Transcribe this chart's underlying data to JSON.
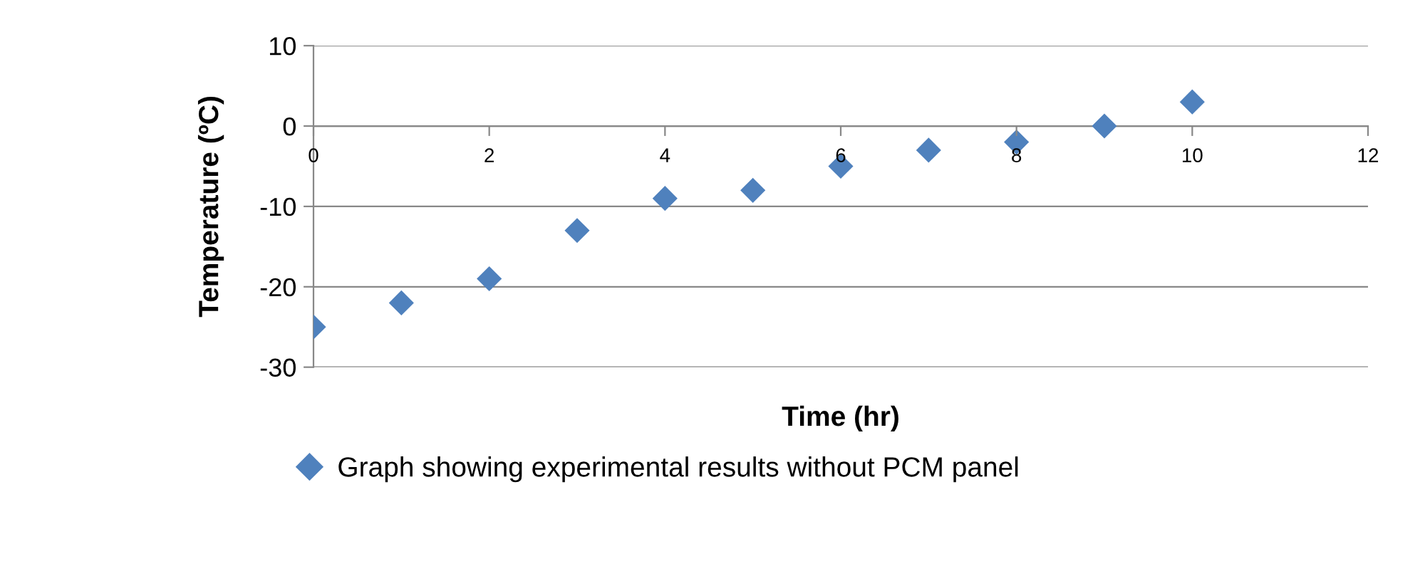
{
  "chart_data": {
    "type": "scatter",
    "xlabel": "Time (hr)",
    "ylabel": "Temperature (ºC)",
    "x": [
      0,
      1,
      2,
      3,
      4,
      5,
      6,
      7,
      8,
      9,
      10
    ],
    "series": [
      {
        "name": "Graph showing experimental results without PCM panel",
        "color": "#4f81bd",
        "values": [
          -25,
          -22,
          -19,
          -13,
          -9,
          -8,
          -5,
          -3,
          -2,
          0,
          3
        ]
      }
    ],
    "xlim": [
      0,
      12
    ],
    "xticks": [
      0,
      2,
      4,
      6,
      8,
      10,
      12
    ],
    "ylim": [
      -30,
      10
    ],
    "yticks": [
      -30,
      -20,
      -10,
      0,
      10
    ],
    "grid": "y",
    "legend": "bottom",
    "marker": "diamond"
  }
}
